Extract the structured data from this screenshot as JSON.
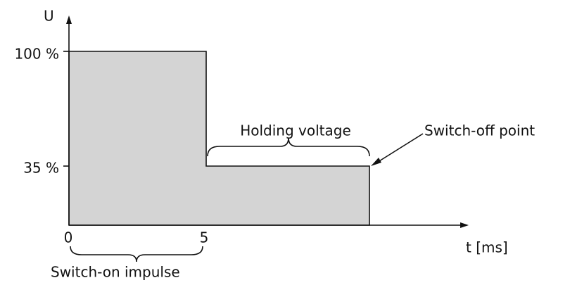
{
  "axes": {
    "y_label": "U",
    "x_label": "t [ms]",
    "y_ticks": [
      "100 %",
      "35 %"
    ],
    "x_ticks": [
      "0",
      "5"
    ]
  },
  "annotations": {
    "holding": "Holding voltage",
    "switch_off": "Switch-off point",
    "switch_on": "Switch-on impulse"
  }
}
